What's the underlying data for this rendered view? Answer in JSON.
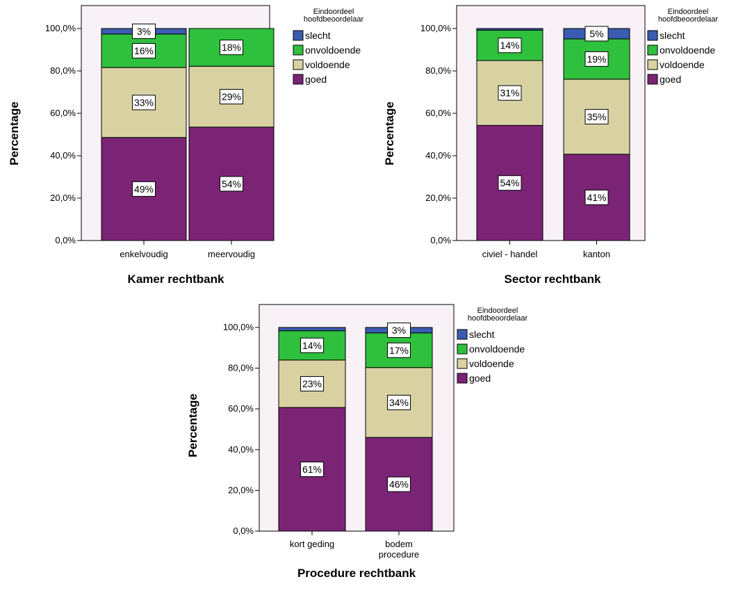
{
  "colors": {
    "slecht": "#3a5cb0",
    "onvoldoende": "#2fc03d",
    "voldoende": "#d8d1a2",
    "goed": "#7b2475",
    "plot_background": "#f8f2f6"
  },
  "chart_data": [
    {
      "type": "bar",
      "stacked": true,
      "xlabel": "Kamer rechtbank",
      "ylabel": "Percentage",
      "ylim": [
        0,
        100
      ],
      "yticks": [
        "0,0%",
        "20,0%",
        "40,0%",
        "60,0%",
        "80,0%",
        "100,0%"
      ],
      "categories": [
        "enkelvoudig",
        "meervoudig"
      ],
      "legend_title": "Eindoordeel hoofdbeoordelaar",
      "legend_position": "right",
      "series": [
        {
          "name": "goed",
          "values": [
            48.6,
            53.5
          ],
          "labels": [
            "49%",
            "54%"
          ]
        },
        {
          "name": "voldoende",
          "values": [
            33.0,
            28.7
          ],
          "labels": [
            "33%",
            "29%"
          ]
        },
        {
          "name": "onvoldoende",
          "values": [
            15.8,
            17.8
          ],
          "labels": [
            "16%",
            "18%"
          ]
        },
        {
          "name": "slecht",
          "values": [
            2.6,
            0.0
          ],
          "labels": [
            "3%",
            ""
          ]
        }
      ]
    },
    {
      "type": "bar",
      "stacked": true,
      "xlabel": "Sector rechtbank",
      "ylabel": "Percentage",
      "ylim": [
        0,
        100
      ],
      "yticks": [
        "0,0%",
        "20,0%",
        "40,0%",
        "60,0%",
        "80,0%",
        "100,0%"
      ],
      "categories": [
        "civiel - handel",
        "kanton"
      ],
      "legend_title": "Eindoordeel hoofdbeoordelaar",
      "legend_position": "right",
      "series": [
        {
          "name": "goed",
          "values": [
            54.3,
            40.7
          ],
          "labels": [
            "54%",
            "41%"
          ]
        },
        {
          "name": "voldoende",
          "values": [
            30.6,
            35.4
          ],
          "labels": [
            "31%",
            "35%"
          ]
        },
        {
          "name": "onvoldoende",
          "values": [
            14.3,
            19.0
          ],
          "labels": [
            "14%",
            "19%"
          ]
        },
        {
          "name": "slecht",
          "values": [
            0.8,
            4.9
          ],
          "labels": [
            "",
            "5%"
          ]
        }
      ]
    },
    {
      "type": "bar",
      "stacked": true,
      "xlabel": "Procedure rechtbank",
      "ylabel": "Percentage",
      "ylim": [
        0,
        100
      ],
      "yticks": [
        "0,0%",
        "20,0%",
        "40,0%",
        "60,0%",
        "80,0%",
        "100,0%"
      ],
      "categories": [
        "kort geding",
        "bodem procedure"
      ],
      "legend_title": "Eindoordeel hoofdbeoordelaar",
      "legend_position": "right",
      "series": [
        {
          "name": "goed",
          "values": [
            60.7,
            46.0
          ],
          "labels": [
            "61%",
            "46%"
          ]
        },
        {
          "name": "voldoende",
          "values": [
            23.3,
            34.3
          ],
          "labels": [
            "23%",
            "34%"
          ]
        },
        {
          "name": "onvoldoende",
          "values": [
            14.4,
            17.0
          ],
          "labels": [
            "14%",
            "17%"
          ]
        },
        {
          "name": "slecht",
          "values": [
            1.6,
            2.7
          ],
          "labels": [
            "",
            "3%"
          ]
        }
      ]
    }
  ]
}
